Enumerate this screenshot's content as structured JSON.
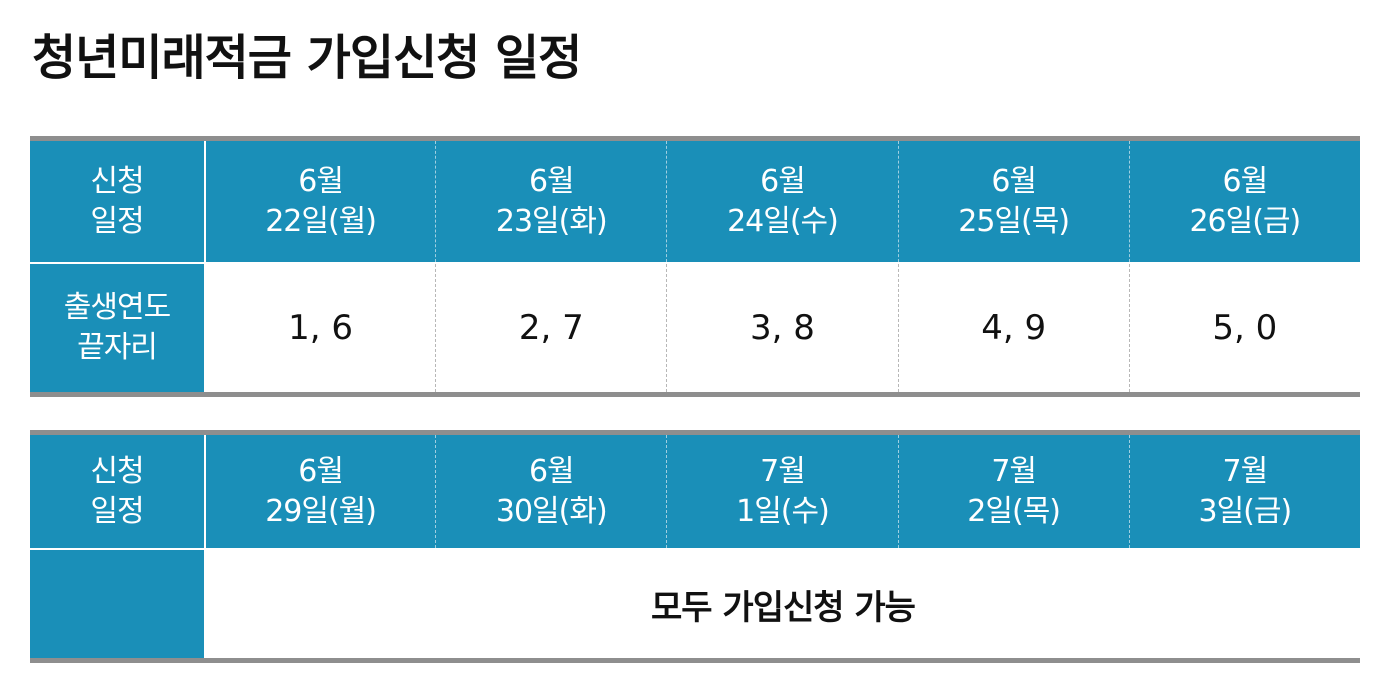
{
  "title": "청년미래적금 가입신청 일정",
  "colors": {
    "header_bg": "#1a8fb8",
    "rule": "#8e8e8e",
    "text": "#111111"
  },
  "table1": {
    "header_label": [
      "신청",
      "일정"
    ],
    "dates": [
      {
        "month": "6월",
        "day": "22일(월)"
      },
      {
        "month": "6월",
        "day": "23일(화)"
      },
      {
        "month": "6월",
        "day": "24일(수)"
      },
      {
        "month": "6월",
        "day": "25일(목)"
      },
      {
        "month": "6월",
        "day": "26일(금)"
      }
    ],
    "row_label": [
      "출생연도",
      "끝자리"
    ],
    "values": [
      "1, 6",
      "2, 7",
      "3, 8",
      "4, 9",
      "5, 0"
    ]
  },
  "table2": {
    "header_label": [
      "신청",
      "일정"
    ],
    "dates": [
      {
        "month": "6월",
        "day": "29일(월)"
      },
      {
        "month": "6월",
        "day": "30일(화)"
      },
      {
        "month": "7월",
        "day": "1일(수)"
      },
      {
        "month": "7월",
        "day": "2일(목)"
      },
      {
        "month": "7월",
        "day": "3일(금)"
      }
    ],
    "row_label": [
      "",
      ""
    ],
    "note": "모두 가입신청 가능"
  }
}
